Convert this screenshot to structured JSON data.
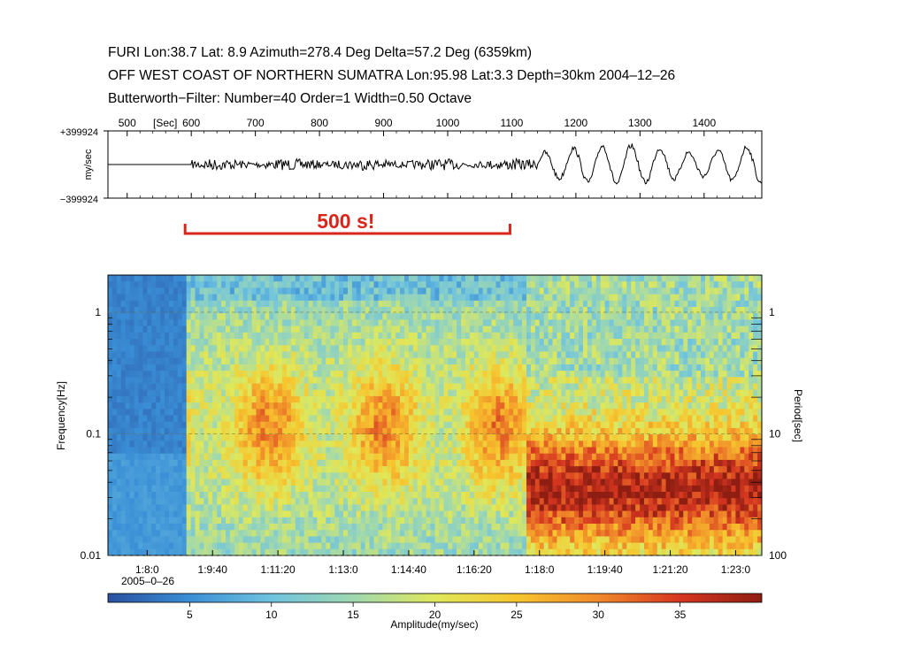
{
  "header": {
    "line1": "FURI Lon:38.7 Lat: 8.9 Azimuth=278.4 Deg  Delta=57.2 Deg (6359km)",
    "line2": "OFF WEST COAST OF NORTHERN SUMATRA  Lon:95.98  Lat:3.3  Depth=30km  2004‒12‒26",
    "line3": "Butterworth−Filter: Number=40  Order=1  Width=0.50 Octave"
  },
  "chart_data": [
    {
      "type": "line",
      "xunit": "[Sec]",
      "xticks": [
        "500",
        "600",
        "700",
        "800",
        "900",
        "1000",
        "1100",
        "1200",
        "1300",
        "1400"
      ],
      "xlim": [
        470,
        1490
      ],
      "ylabel": "my/sec",
      "ymax_label": "+399924",
      "ymin_label": "−399924",
      "ylim": [
        -399924,
        399924
      ],
      "segments": [
        {
          "x": [
            470,
            600
          ],
          "amplitude": 0
        },
        {
          "x": [
            600,
            1140
          ],
          "amplitude_fraction": 0.15
        },
        {
          "x": [
            1140,
            1490
          ],
          "amplitude_fraction": 0.6,
          "period_s": 45
        }
      ],
      "annotation": {
        "text": "500 s!",
        "color": "#d9261c",
        "x_range": [
          600,
          1100
        ]
      }
    },
    {
      "type": "heatmap",
      "ylabel": "Frequency[Hz]",
      "y2label": "Period[sec]",
      "yticks": [
        "1",
        "0.1",
        "0.01"
      ],
      "y2ticks": [
        "1",
        "10",
        "100"
      ],
      "xticks": [
        "1:8:0",
        "1:9:40",
        "1:11:20",
        "1:13:0",
        "1:14:40",
        "1:16:20",
        "1:18:0",
        "1:19:40",
        "1:21:20",
        "1:23:0"
      ],
      "xdate": "2005‒0‒26",
      "colorbar": {
        "label": "Amplitude(my/sec)",
        "ticks": [
          "5",
          "10",
          "15",
          "20",
          "25",
          "30",
          "35"
        ],
        "range": [
          0,
          40
        ],
        "colors": [
          "#2a4fa0",
          "#3a8fd6",
          "#6ec3e0",
          "#9fd8b0",
          "#dfe85a",
          "#f7c52e",
          "#f08a2a",
          "#d63620",
          "#8e1e12"
        ]
      },
      "features": [
        {
          "time_range": [
            "1:7:0",
            "1:9:0"
          ],
          "level": "low"
        },
        {
          "time_range": [
            "1:9:0",
            "1:17:40"
          ],
          "level": "moderate",
          "peak_period_s": 10
        },
        {
          "time_range": [
            "1:17:40",
            "1:23:40"
          ],
          "level": "high",
          "peak_period_s": 30
        }
      ]
    }
  ]
}
